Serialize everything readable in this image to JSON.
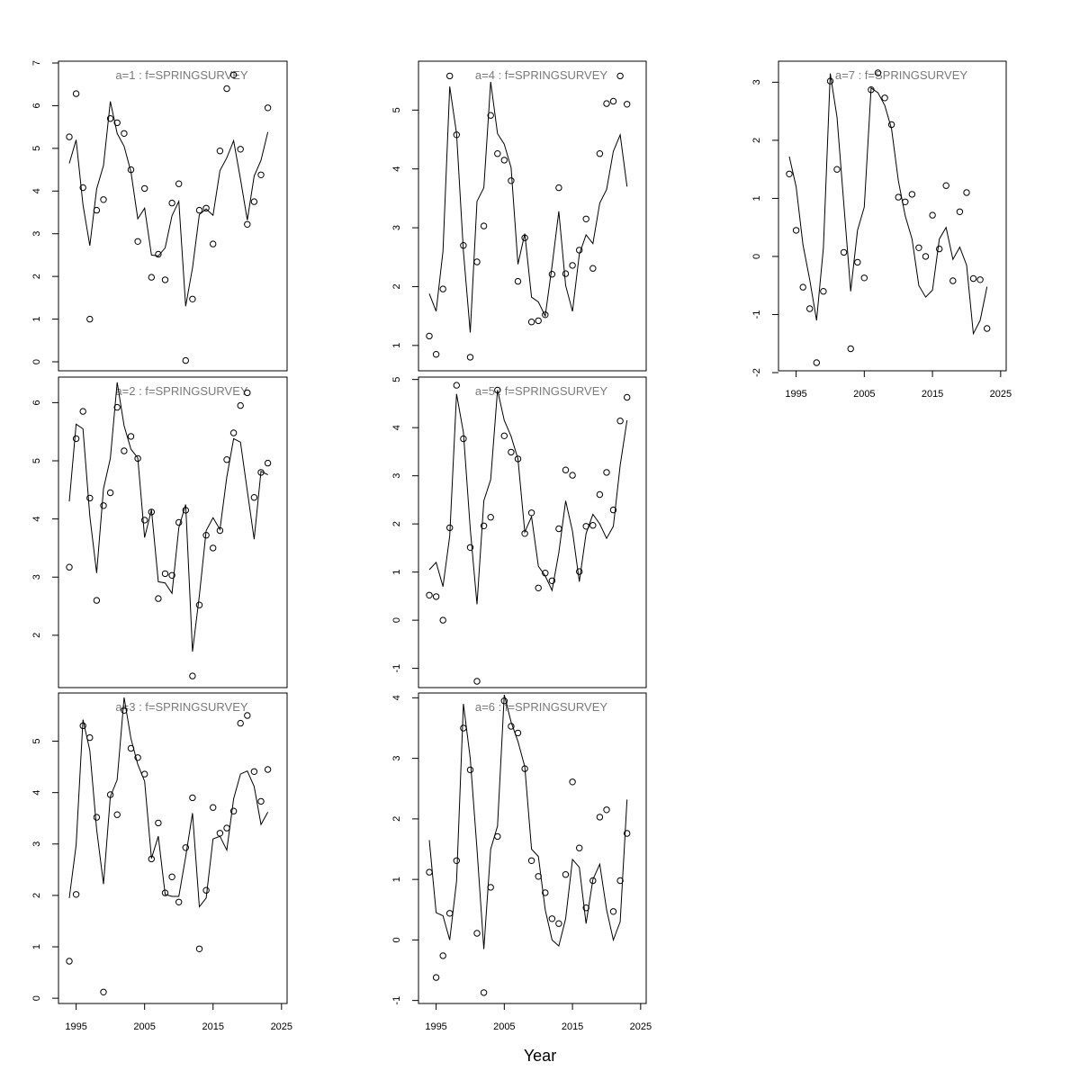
{
  "figure": {
    "xlabel": "Year"
  },
  "chart_data": [
    {
      "type": "line",
      "title": "a=1  :  f=SPRINGSURVEY",
      "ylim": [
        0,
        7
      ],
      "xlim": [
        1993,
        2024
      ],
      "yticks": [
        0,
        1,
        2,
        3,
        4,
        5,
        6,
        7
      ],
      "xticks": [],
      "x": [
        1994,
        1995,
        1996,
        1997,
        1998,
        1999,
        2000,
        2001,
        2002,
        2003,
        2004,
        2005,
        2006,
        2007,
        2008,
        2009,
        2010,
        2011,
        2012,
        2013,
        2014,
        2015,
        2016,
        2017,
        2018,
        2019,
        2020,
        2021,
        2022,
        2023
      ],
      "series": [
        {
          "kind": "points",
          "values": [
            5.27,
            6.28,
            4.08,
            1.0,
            3.55,
            3.8,
            5.7,
            5.6,
            5.35,
            4.5,
            2.82,
            4.06,
            1.98,
            2.52,
            1.92,
            3.72,
            4.17,
            0.03,
            1.47,
            3.55,
            3.6,
            2.76,
            4.94,
            6.4,
            6.72,
            4.98,
            3.22,
            3.75,
            4.38,
            5.95
          ]
        },
        {
          "kind": "line",
          "values": [
            4.65,
            5.2,
            3.68,
            2.72,
            4.05,
            4.6,
            6.1,
            5.35,
            5.05,
            4.45,
            3.35,
            3.6,
            2.5,
            2.48,
            2.67,
            3.42,
            3.76,
            1.3,
            2.2,
            3.45,
            3.58,
            3.43,
            4.48,
            4.78,
            5.18,
            4.28,
            3.32,
            4.35,
            4.72,
            5.38
          ]
        }
      ]
    },
    {
      "type": "line",
      "title": "a=2  :  f=SPRINGSURVEY",
      "ylim": [
        1.1,
        6.3
      ],
      "xlim": [
        1993,
        2024
      ],
      "yticks": [
        2,
        3,
        4,
        5,
        6
      ],
      "xticks": [],
      "x": [
        1994,
        1995,
        1996,
        1997,
        1998,
        1999,
        2000,
        2001,
        2002,
        2003,
        2004,
        2005,
        2006,
        2007,
        2008,
        2009,
        2010,
        2011,
        2012,
        2013,
        2014,
        2015,
        2016,
        2017,
        2018,
        2019,
        2020,
        2021,
        2022,
        2023
      ],
      "series": [
        {
          "kind": "points",
          "values": [
            3.17,
            5.38,
            5.85,
            4.36,
            2.6,
            4.23,
            4.45,
            5.92,
            5.17,
            5.42,
            5.04,
            3.98,
            4.12,
            2.63,
            3.06,
            3.03,
            3.94,
            4.15,
            1.3,
            2.52,
            3.72,
            3.5,
            3.8,
            5.02,
            5.48,
            5.95,
            6.17,
            4.37,
            4.8,
            4.96
          ]
        },
        {
          "kind": "line",
          "values": [
            4.3,
            5.63,
            5.55,
            4.05,
            3.07,
            4.52,
            5.04,
            6.35,
            5.6,
            5.2,
            5.05,
            3.68,
            4.16,
            2.92,
            2.9,
            2.72,
            3.85,
            4.25,
            1.72,
            2.68,
            3.8,
            4.02,
            3.82,
            4.72,
            5.38,
            5.32,
            4.48,
            3.65,
            4.82,
            4.76
          ]
        }
      ]
    },
    {
      "type": "line",
      "title": "a=3  :  f=SPRINGSURVEY",
      "ylim": [
        -0.05,
        5.85
      ],
      "xlim": [
        1993,
        2024
      ],
      "yticks": [
        0,
        1,
        2,
        3,
        4,
        5
      ],
      "xticks": [
        1995,
        2005,
        2015,
        2025
      ],
      "x": [
        1994,
        1995,
        1996,
        1997,
        1998,
        1999,
        2000,
        2001,
        2002,
        2003,
        2004,
        2005,
        2006,
        2007,
        2008,
        2009,
        2010,
        2011,
        2012,
        2013,
        2014,
        2015,
        2016,
        2017,
        2018,
        2019,
        2020,
        2021,
        2022,
        2023
      ],
      "series": [
        {
          "kind": "points",
          "values": [
            0.72,
            2.02,
            5.3,
            5.07,
            3.52,
            0.12,
            3.96,
            3.57,
            5.6,
            4.86,
            4.68,
            4.36,
            2.71,
            3.41,
            2.05,
            2.36,
            1.87,
            2.93,
            3.9,
            0.96,
            2.1,
            3.71,
            3.21,
            3.31,
            3.64,
            5.35,
            5.5,
            4.41,
            3.83,
            4.45
          ]
        },
        {
          "kind": "line",
          "values": [
            1.95,
            2.98,
            5.42,
            4.82,
            3.28,
            2.22,
            3.92,
            4.25,
            5.85,
            5.05,
            4.55,
            4.22,
            2.72,
            3.15,
            2.02,
            1.98,
            1.98,
            2.75,
            3.6,
            1.78,
            1.95,
            3.1,
            3.15,
            2.88,
            3.88,
            4.36,
            4.42,
            4.12,
            3.38,
            3.62
          ]
        }
      ]
    },
    {
      "type": "line",
      "title": "a=4  :  f=SPRINGSURVEY",
      "ylim": [
        0.6,
        5.8
      ],
      "xlim": [
        1993,
        2024
      ],
      "yticks": [
        1,
        2,
        3,
        4,
        5
      ],
      "xticks": [],
      "x": [
        1994,
        1995,
        1996,
        1997,
        1998,
        1999,
        2000,
        2001,
        2002,
        2003,
        2004,
        2005,
        2006,
        2007,
        2008,
        2009,
        2010,
        2011,
        2012,
        2013,
        2014,
        2015,
        2016,
        2017,
        2018,
        2019,
        2020,
        2021,
        2022,
        2023
      ],
      "series": [
        {
          "kind": "points",
          "values": [
            1.16,
            0.85,
            1.96,
            5.58,
            4.58,
            2.7,
            0.8,
            2.42,
            3.03,
            4.91,
            4.26,
            4.15,
            3.8,
            2.09,
            2.83,
            1.4,
            1.42,
            1.52,
            2.21,
            3.68,
            2.22,
            2.36,
            2.62,
            3.15,
            2.31,
            4.26,
            5.11,
            5.15,
            5.58,
            5.1
          ]
        },
        {
          "kind": "line",
          "values": [
            1.88,
            1.58,
            2.6,
            5.4,
            4.6,
            2.6,
            1.22,
            3.45,
            3.68,
            5.48,
            4.6,
            4.42,
            4.02,
            2.38,
            2.9,
            1.82,
            1.74,
            1.5,
            2.35,
            3.28,
            2.02,
            1.58,
            2.55,
            2.88,
            2.73,
            3.42,
            3.65,
            4.3,
            4.58,
            3.7
          ]
        }
      ]
    },
    {
      "type": "line",
      "title": "a=5  :  f=SPRINGSURVEY",
      "ylim": [
        -1.4,
        5.05
      ],
      "xlim": [
        1993,
        2024
      ],
      "yticks": [
        -1,
        0,
        1,
        2,
        3,
        4,
        5
      ],
      "xticks": [],
      "x": [
        1994,
        1995,
        1996,
        1997,
        1998,
        1999,
        2000,
        2001,
        2002,
        2003,
        2004,
        2005,
        2006,
        2007,
        2008,
        2009,
        2010,
        2011,
        2012,
        2013,
        2014,
        2015,
        2016,
        2017,
        2018,
        2019,
        2020,
        2021,
        2022,
        2023
      ],
      "series": [
        {
          "kind": "points",
          "values": [
            0.52,
            0.49,
            0.0,
            1.92,
            4.88,
            3.77,
            1.51,
            -1.27,
            1.96,
            2.14,
            4.78,
            3.83,
            3.49,
            3.35,
            1.8,
            2.23,
            0.67,
            0.98,
            0.82,
            1.9,
            3.12,
            3.01,
            1.01,
            1.95,
            1.97,
            2.61,
            3.07,
            2.29,
            4.14,
            4.63
          ]
        },
        {
          "kind": "line",
          "values": [
            1.05,
            1.2,
            0.7,
            1.75,
            4.7,
            3.9,
            1.9,
            0.33,
            2.48,
            2.92,
            4.78,
            4.15,
            3.82,
            3.35,
            1.83,
            2.15,
            1.12,
            0.92,
            0.62,
            1.4,
            2.48,
            1.85,
            0.8,
            1.8,
            2.2,
            2.0,
            1.7,
            1.95,
            3.22,
            4.15
          ]
        }
      ]
    },
    {
      "type": "line",
      "title": "a=6  :  f=SPRINGSURVEY",
      "ylim": [
        -1.05,
        4.05
      ],
      "xlim": [
        1993,
        2024
      ],
      "yticks": [
        -1,
        0,
        1,
        2,
        3,
        4
      ],
      "xticks": [
        1995,
        2005,
        2015,
        2025
      ],
      "x": [
        1994,
        1995,
        1996,
        1997,
        1998,
        1999,
        2000,
        2001,
        2002,
        2003,
        2004,
        2005,
        2006,
        2007,
        2008,
        2009,
        2010,
        2011,
        2012,
        2013,
        2014,
        2015,
        2016,
        2017,
        2018,
        2019,
        2020,
        2021,
        2022,
        2023
      ],
      "series": [
        {
          "kind": "points",
          "values": [
            1.12,
            -0.62,
            -0.26,
            0.44,
            1.31,
            3.5,
            2.81,
            0.11,
            -0.87,
            0.87,
            1.71,
            3.95,
            3.53,
            3.42,
            2.83,
            1.31,
            1.05,
            0.78,
            0.35,
            0.27,
            1.08,
            2.61,
            1.52,
            0.53,
            0.98,
            2.03,
            2.15,
            0.47,
            0.98,
            1.76
          ]
        },
        {
          "kind": "line",
          "values": [
            1.65,
            0.45,
            0.4,
            0.0,
            0.97,
            3.9,
            3.0,
            1.5,
            -0.15,
            1.5,
            1.88,
            4.05,
            3.6,
            3.28,
            2.86,
            1.5,
            1.38,
            0.5,
            0.0,
            -0.1,
            0.35,
            1.33,
            1.2,
            0.27,
            1.0,
            1.25,
            0.5,
            0.0,
            0.3,
            2.32
          ]
        }
      ]
    },
    {
      "type": "line",
      "title": "a=7  :  f=SPRINGSURVEY",
      "ylim": [
        -2.0,
        3.3
      ],
      "xlim": [
        1993,
        2024
      ],
      "yticks": [
        -2,
        -1,
        0,
        1,
        2,
        3
      ],
      "xticks": [
        1995,
        2005,
        2015,
        2025
      ],
      "x": [
        1994,
        1995,
        1996,
        1997,
        1998,
        1999,
        2000,
        2001,
        2002,
        2003,
        2004,
        2005,
        2006,
        2007,
        2008,
        2009,
        2010,
        2011,
        2012,
        2013,
        2014,
        2015,
        2016,
        2017,
        2018,
        2019,
        2020,
        2021,
        2022,
        2023
      ],
      "series": [
        {
          "kind": "points",
          "values": [
            1.42,
            0.45,
            -0.53,
            -0.9,
            -1.83,
            -0.6,
            3.02,
            1.5,
            0.07,
            -1.59,
            -0.1,
            -0.37,
            2.87,
            3.16,
            2.73,
            2.27,
            1.02,
            0.94,
            1.07,
            0.15,
            0.0,
            0.71,
            0.13,
            1.22,
            -0.42,
            0.77,
            1.1,
            -0.38,
            -0.4,
            -1.24
          ]
        },
        {
          "kind": "line",
          "values": [
            1.72,
            1.2,
            0.2,
            -0.4,
            -1.1,
            0.15,
            3.15,
            2.4,
            0.9,
            -0.6,
            0.45,
            0.85,
            2.9,
            2.82,
            2.6,
            2.2,
            1.3,
            0.7,
            0.3,
            -0.5,
            -0.7,
            -0.58,
            0.3,
            0.5,
            -0.05,
            0.16,
            -0.15,
            -1.33,
            -1.1,
            -0.52
          ]
        }
      ]
    }
  ]
}
